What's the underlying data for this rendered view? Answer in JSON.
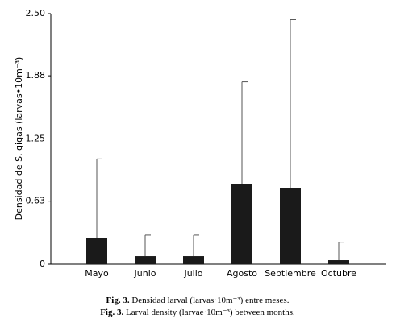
{
  "chart_data": {
    "type": "bar",
    "ylabel": "Densidad de S. gigas (larvas•10m⁻³)",
    "categories": [
      "Mayo",
      "Junio",
      "Julio",
      "Agosto",
      "Septiembre",
      "Octubre"
    ],
    "values": [
      0.26,
      0.08,
      0.08,
      0.8,
      0.76,
      0.04
    ],
    "errors": [
      0.79,
      0.21,
      0.21,
      1.02,
      1.68,
      0.18
    ],
    "color": "#1a1a1a",
    "ylim": [
      0,
      2.5
    ],
    "yticks": [
      0,
      0.63,
      1.25,
      1.88,
      {
        "value": 2.5,
        "label": "2.50"
      }
    ],
    "grid": false,
    "caption": [
      {
        "label": "Fig. 3.",
        "text": "Densidad larval (larvas·10m⁻³) entre meses."
      },
      {
        "label": "Fig. 3.",
        "text": "Larval density (larvae·10m⁻³) between months."
      }
    ]
  }
}
